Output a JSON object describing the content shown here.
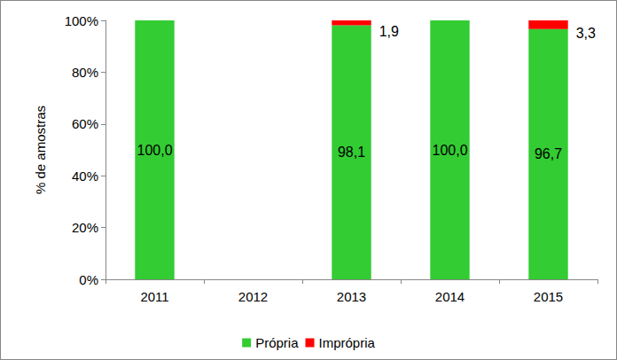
{
  "chart_data": {
    "type": "bar",
    "stacked": true,
    "categories": [
      "2011",
      "2012",
      "2013",
      "2014",
      "2015"
    ],
    "series": [
      {
        "name": "Própria",
        "color": "#33CC33",
        "values": [
          100.0,
          null,
          98.1,
          100.0,
          96.7
        ],
        "value_labels": [
          "100,0",
          null,
          "98,1",
          "100,0",
          "96,7"
        ]
      },
      {
        "name": "Imprópria",
        "color": "#FF0000",
        "values": [
          null,
          null,
          1.9,
          null,
          3.3
        ],
        "value_labels": [
          null,
          null,
          "1,9",
          null,
          "3,3"
        ]
      }
    ],
    "y_label": "% de amostras",
    "ylim": [
      0,
      100
    ],
    "yticks": [
      {
        "value": 0,
        "label": "0%"
      },
      {
        "value": 20,
        "label": "20%"
      },
      {
        "value": 40,
        "label": "40%"
      },
      {
        "value": 60,
        "label": "60%"
      },
      {
        "value": 80,
        "label": "80%"
      },
      {
        "value": 100,
        "label": "100%"
      }
    ],
    "grid": false,
    "legend": "bottom",
    "data_labels": true
  }
}
